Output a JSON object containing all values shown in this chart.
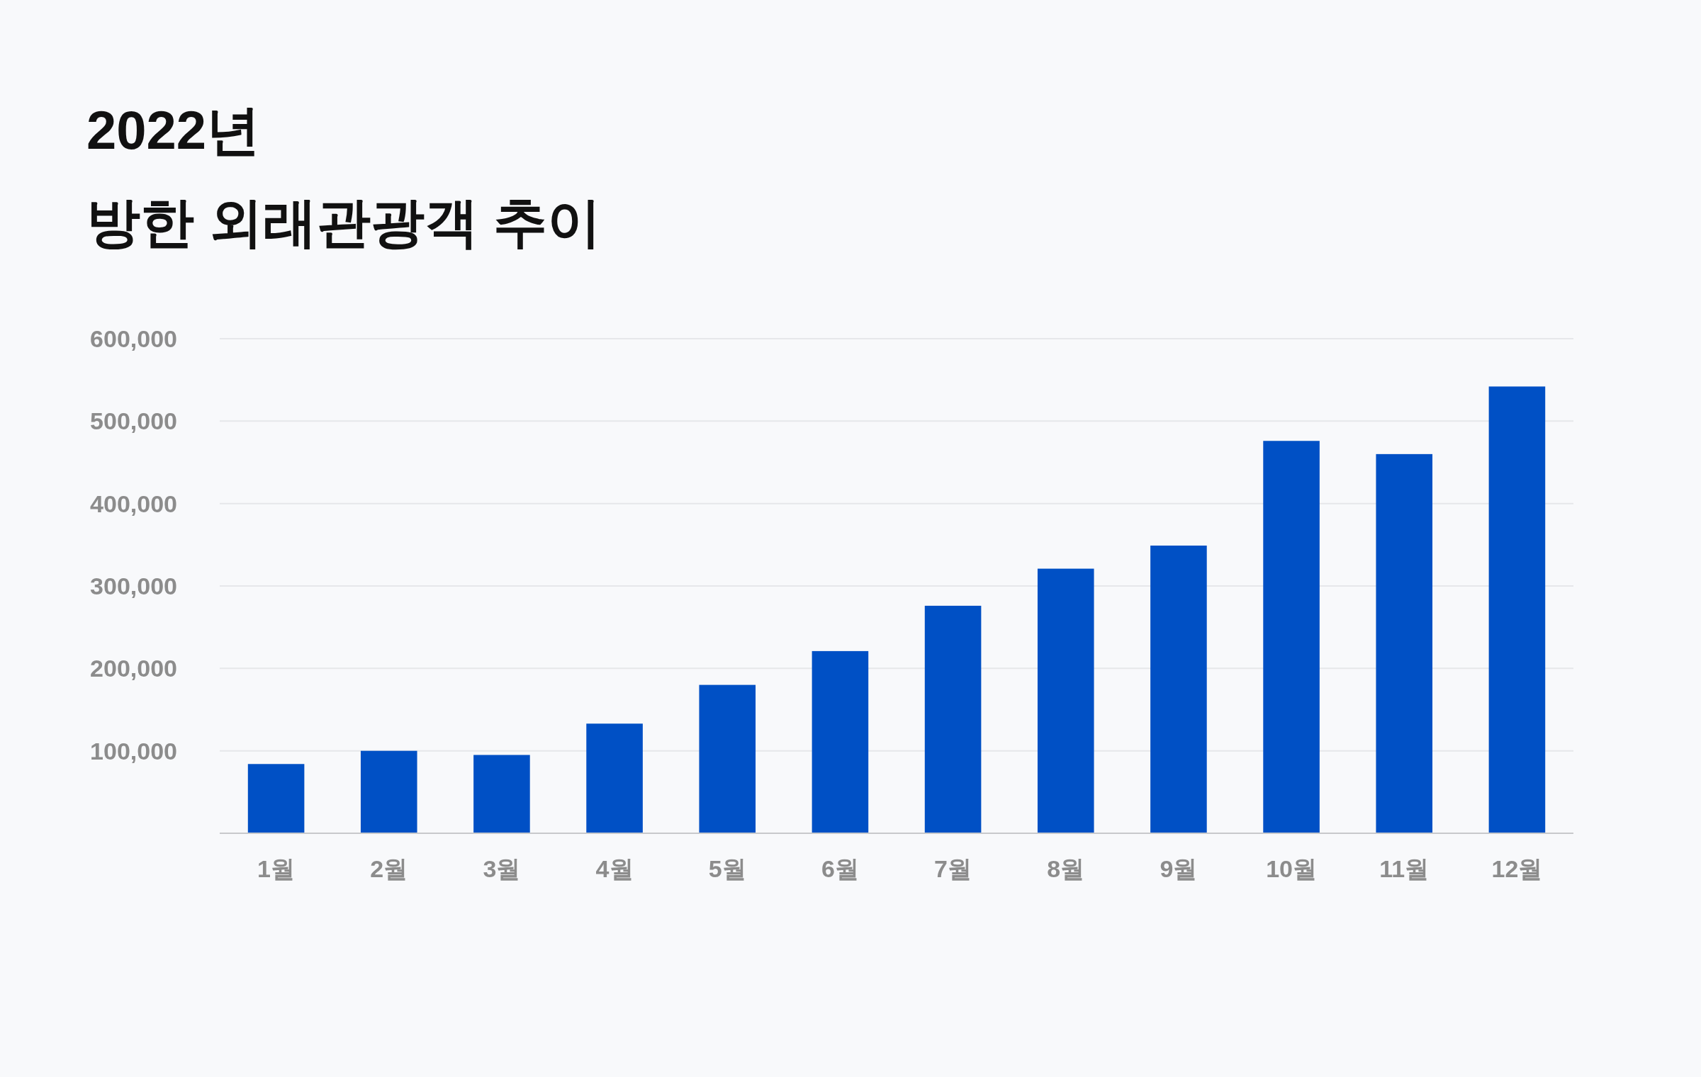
{
  "chart_data": {
    "type": "bar",
    "title": "2022년",
    "subtitle": "방한 외래관광객 추이",
    "categories": [
      "1월",
      "2월",
      "3월",
      "4월",
      "5월",
      "6월",
      "7월",
      "8월",
      "9월",
      "10월",
      "11월",
      "12월"
    ],
    "values": [
      84000,
      100000,
      95000,
      133000,
      180000,
      221000,
      276000,
      321000,
      349000,
      476000,
      460000,
      542000
    ],
    "color": "#0050c5",
    "ylim": [
      0,
      600000
    ],
    "yticks": [
      {
        "value": 100000,
        "label": "100,000"
      },
      {
        "value": 200000,
        "label": "200,000"
      },
      {
        "value": 300000,
        "label": "300,000"
      },
      {
        "value": 400000,
        "label": "400,000"
      },
      {
        "value": 500000,
        "label": "500,000"
      },
      {
        "value": 600000,
        "label": "600,000"
      }
    ],
    "grid": "y"
  }
}
